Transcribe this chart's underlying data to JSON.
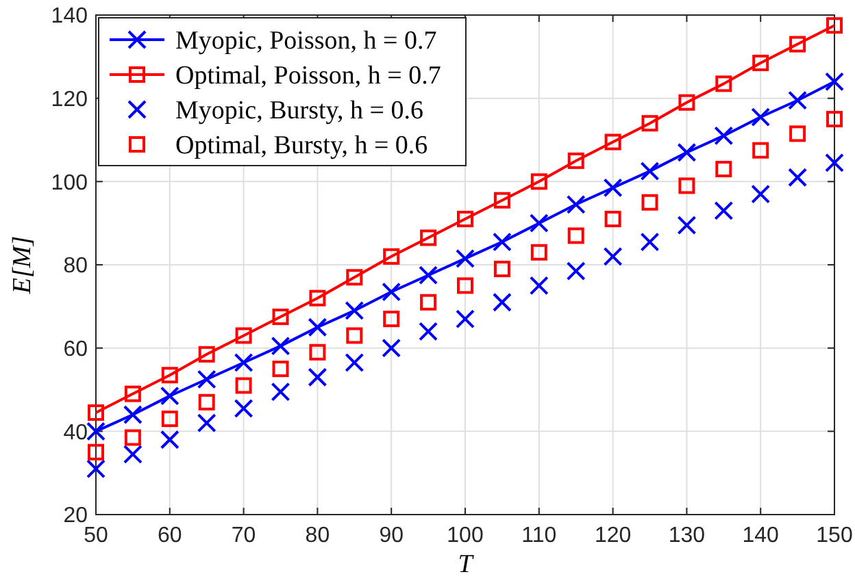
{
  "chart_data": {
    "type": "line",
    "xlabel": "T",
    "ylabel": "E[M]",
    "x": [
      50,
      55,
      60,
      65,
      70,
      75,
      80,
      85,
      90,
      95,
      100,
      105,
      110,
      115,
      120,
      125,
      130,
      135,
      140,
      145,
      150
    ],
    "xlim": [
      50,
      150
    ],
    "xticks": [
      50,
      60,
      70,
      80,
      90,
      100,
      110,
      120,
      130,
      140,
      150
    ],
    "ylim": [
      20,
      140
    ],
    "yticks": [
      20,
      40,
      60,
      80,
      100,
      120,
      140
    ],
    "grid": true,
    "legend": "top left",
    "line_style": "solid",
    "series": [
      {
        "name": "Myopic, Poisson, h = 0.7",
        "marker": "cross",
        "color": "#0000ff",
        "values": [
          40,
          44,
          48.5,
          52.5,
          56.5,
          60.5,
          65,
          69,
          73.5,
          77.5,
          81.5,
          85.5,
          90,
          94.5,
          98.5,
          102.5,
          107,
          111,
          115.5,
          119.5,
          124
        ]
      },
      {
        "name": "Optimal, Poisson, h = 0.7",
        "marker": "square",
        "color": "#ff0000",
        "values": [
          44.5,
          49,
          53.5,
          58.5,
          63,
          67.5,
          72,
          77,
          82,
          86.5,
          91,
          95.5,
          100,
          105,
          109.5,
          114,
          119,
          123.5,
          128.5,
          133,
          137.5
        ]
      },
      {
        "name": "Myopic, Bursty, h = 0.6",
        "type": "scatter",
        "marker": "cross",
        "color": "#0000ff",
        "values": [
          31,
          34.5,
          38,
          42,
          45.5,
          49.5,
          53,
          56.5,
          60,
          64,
          67,
          71,
          75,
          78.5,
          82,
          85.5,
          89.5,
          93,
          97,
          101,
          104.5
        ]
      },
      {
        "name": "Optimal, Bursty, h = 0.6",
        "type": "scatter",
        "marker": "square",
        "color": "#ff0000",
        "values": [
          35,
          38.5,
          43,
          47,
          51,
          55,
          59,
          63,
          67,
          71,
          75,
          79,
          83,
          87,
          91,
          95,
          99,
          103,
          107.5,
          111.5,
          115
        ]
      }
    ]
  }
}
